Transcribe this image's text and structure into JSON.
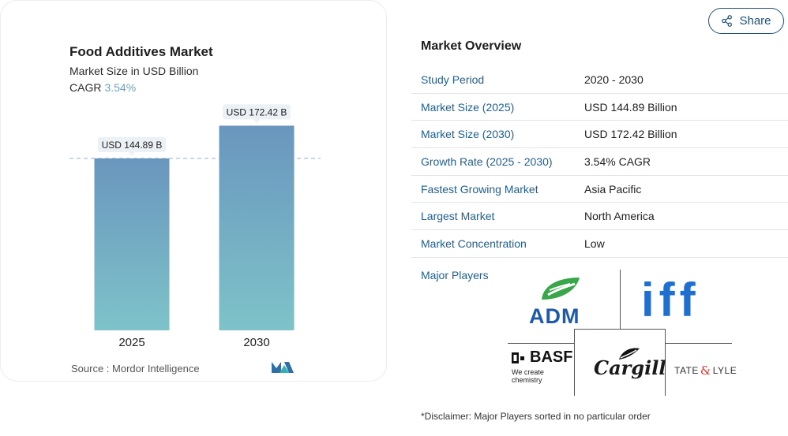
{
  "chart": {
    "title": "Food Additives Market",
    "subtitle": "Market Size in USD Billion",
    "cagr_label": "CAGR",
    "cagr_value": "3.54%",
    "source": "Source :  Mordor Intelligence"
  },
  "chart_data": {
    "type": "bar",
    "categories": [
      "2025",
      "2030"
    ],
    "values": [
      144.89,
      172.42
    ],
    "data_labels": [
      "USD 144.89 B",
      "USD 172.42 B"
    ],
    "title": "Food Additives Market",
    "subtitle": "Market Size in USD Billion",
    "ylim": [
      0,
      180
    ],
    "grid": false,
    "reference_line": 144.89,
    "colors": {
      "bar_top": "#6a96be",
      "bar_bottom": "#7ec3c9",
      "reference": "#8fb2cc"
    }
  },
  "share": {
    "label": "Share"
  },
  "overview": {
    "title": "Market Overview",
    "rows": [
      {
        "label": "Study Period",
        "value": "2020 - 2030"
      },
      {
        "label": "Market Size (2025)",
        "value": "USD 144.89 Billion"
      },
      {
        "label": "Market Size (2030)",
        "value": "USD 172.42 Billion"
      },
      {
        "label": "Growth Rate (2025 - 2030)",
        "value": "3.54% CAGR"
      },
      {
        "label": "Fastest Growing Market",
        "value": "Asia Pacific"
      },
      {
        "label": "Largest Market",
        "value": "North America"
      },
      {
        "label": "Market Concentration",
        "value": "Low"
      }
    ],
    "major_players_label": "Major Players",
    "players": {
      "adm": "ADM",
      "iff": "iff",
      "basf": "BASF",
      "basf_tagline": "We create chemistry",
      "cargill": "Cargill",
      "tate": "TATE",
      "lyle": "LYLE"
    },
    "disclaimer": "*Disclaimer: Major Players sorted in no particular order"
  },
  "colors": {
    "link": "#1f5f8f",
    "accent": "#6aa3c7",
    "adm_green": "#3aa64a",
    "adm_blue": "#1e5aa8",
    "iff_blue": "#1f6fd0",
    "cargill": "#1a1a1a"
  }
}
